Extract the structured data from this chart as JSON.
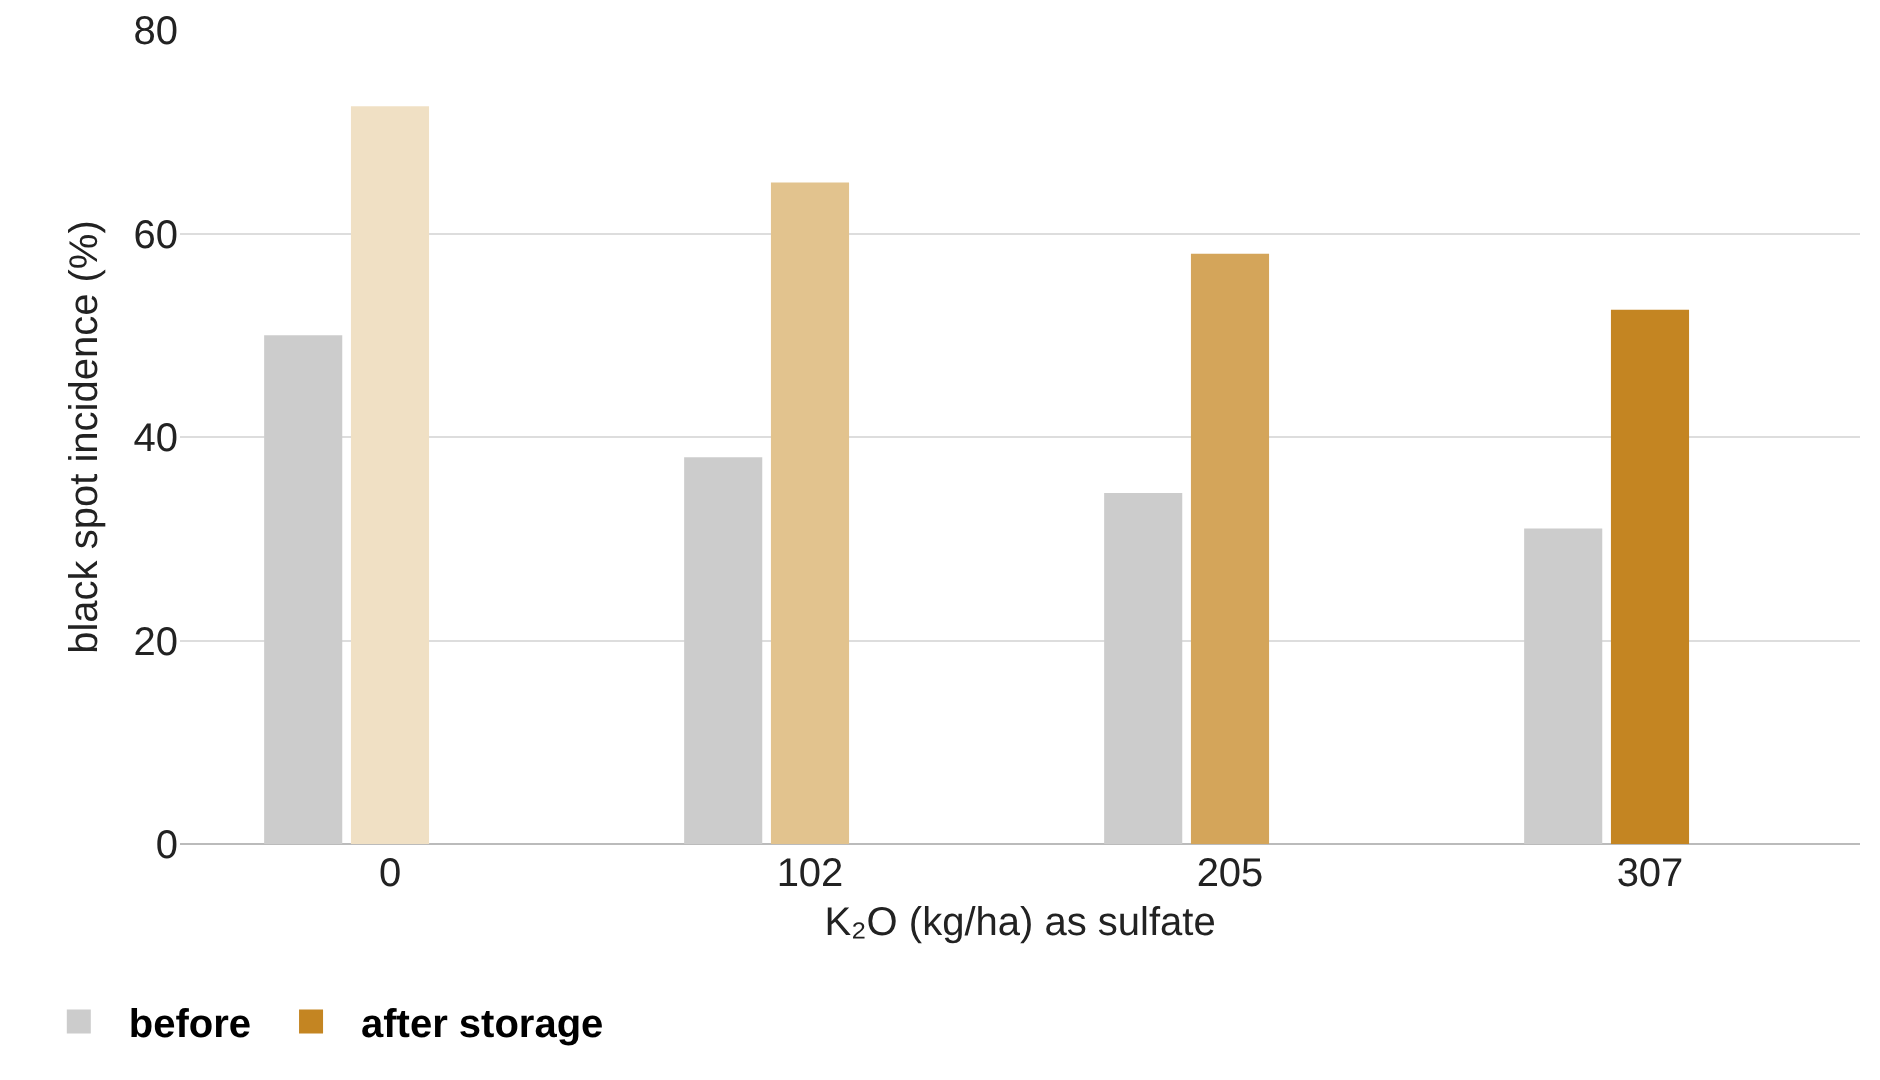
{
  "chart_data": {
    "type": "bar",
    "xlabel": "K₂O (kg/ha) as sulfate",
    "ylabel": "black spot incidence (%)",
    "categories": [
      "0",
      "102",
      "205",
      "307"
    ],
    "series": [
      {
        "name": "before",
        "color": "#cccccc",
        "values": [
          50,
          38,
          34.5,
          31
        ]
      },
      {
        "name": "after storage",
        "color": "#c48522",
        "colors": [
          "#f0e0c4",
          "#e2c38e",
          "#d4a55a",
          "#c48522"
        ],
        "values": [
          72.5,
          65,
          58,
          52.5
        ]
      }
    ],
    "ylim": [
      0,
      80
    ],
    "yticks": [
      0,
      20,
      40,
      60,
      80
    ],
    "grid": "y",
    "legend": "bottom left"
  }
}
